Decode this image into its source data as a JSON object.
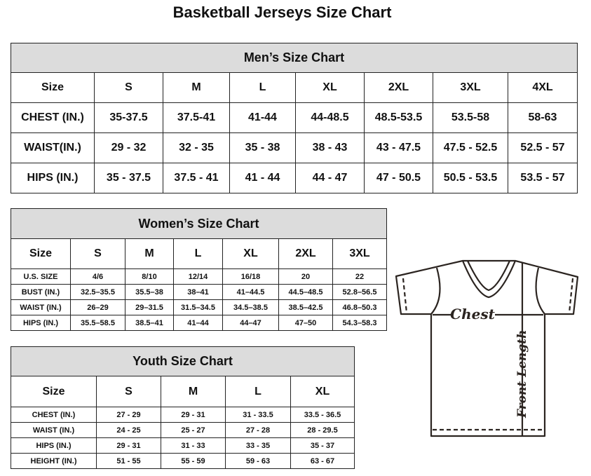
{
  "title": "Basketball Jerseys Size Chart",
  "mens": {
    "heading": "Men’s Size Chart",
    "rows": [
      [
        "Size",
        "S",
        "M",
        "L",
        "XL",
        "2XL",
        "3XL",
        "4XL"
      ],
      [
        "CHEST (IN.)",
        "35-37.5",
        "37.5-41",
        "41-44",
        "44-48.5",
        "48.5-53.5",
        "53.5-58",
        "58-63"
      ],
      [
        "WAIST(IN.)",
        "29 - 32",
        "32 - 35",
        "35 - 38",
        "38 - 43",
        "43 - 47.5",
        "47.5 - 52.5",
        "52.5 - 57"
      ],
      [
        "HIPS (IN.)",
        "35 - 37.5",
        "37.5 - 41",
        "41 - 44",
        "44 - 47",
        "47 - 50.5",
        "50.5 - 53.5",
        "53.5 - 57"
      ]
    ]
  },
  "womens": {
    "heading": "Women’s Size Chart",
    "rows": [
      [
        "Size",
        "S",
        "M",
        "L",
        "XL",
        "2XL",
        "3XL"
      ],
      [
        "U.S. SIZE",
        "4/6",
        "8/10",
        "12/14",
        "16/18",
        "20",
        "22"
      ],
      [
        "BUST (IN.)",
        "32.5–35.5",
        "35.5–38",
        "38–41",
        "41–44.5",
        "44.5–48.5",
        "52.8–56.5"
      ],
      [
        "WAIST (IN.)",
        "26–29",
        "29–31.5",
        "31.5–34.5",
        "34.5–38.5",
        "38.5–42.5",
        "46.8–50.3"
      ],
      [
        "HIPS (IN.)",
        "35.5–58.5",
        "38.5–41",
        "41–44",
        "44–47",
        "47–50",
        "54.3–58.3"
      ]
    ]
  },
  "youth": {
    "heading": "Youth Size Chart",
    "rows": [
      [
        "Size",
        "S",
        "M",
        "L",
        "XL"
      ],
      [
        "CHEST (IN.)",
        "27 - 29",
        "29 - 31",
        "31 - 33.5",
        "33.5 - 36.5"
      ],
      [
        "WAIST (IN.)",
        "24 - 25",
        "25 - 27",
        "27 - 28",
        "28 - 29.5"
      ],
      [
        "HIPS (IN.)",
        "29 - 31",
        "31 - 33",
        "33 - 35",
        "35 - 37"
      ],
      [
        "HEIGHT (IN.)",
        "51 - 55",
        "55 - 59",
        "59 - 63",
        "63 - 67"
      ]
    ]
  },
  "diagram": {
    "chest_label": "Chest",
    "length_label": "Front Length"
  },
  "colors": {
    "header_bg": "#dcdcdc",
    "line": "#2b2420"
  }
}
